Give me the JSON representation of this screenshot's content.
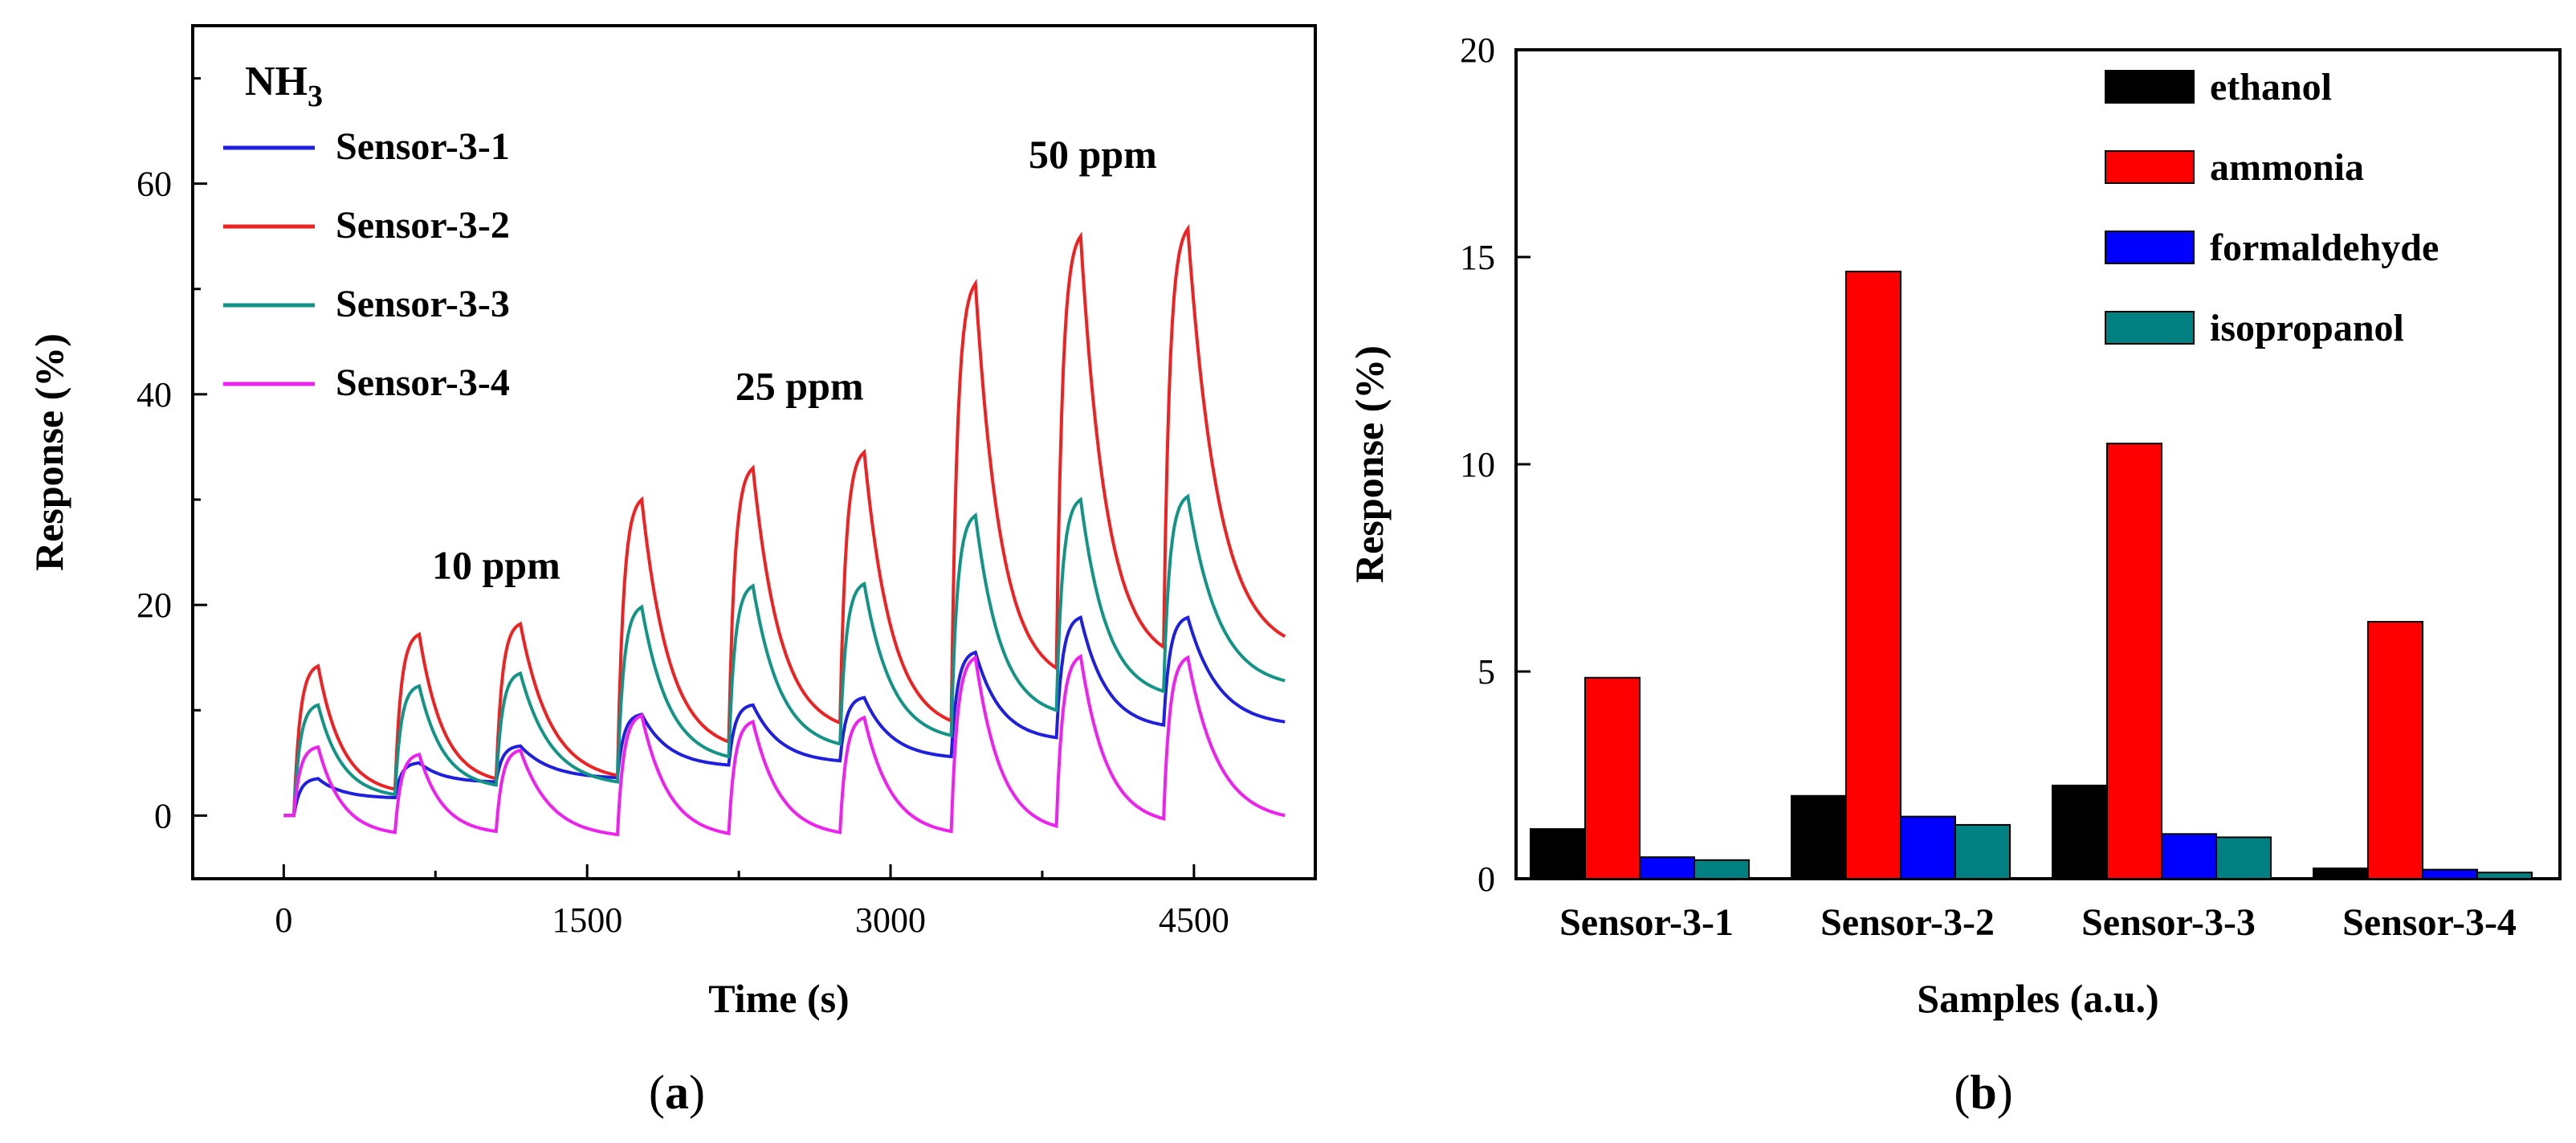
{
  "chart_data": [
    {
      "type": "line",
      "panel": "(a)",
      "caption_letter": "a",
      "title": "NH3",
      "gas": "NH",
      "gas_sub": "3",
      "xlabel": "Time (s)",
      "ylabel": "Response (%)",
      "xlim": [
        -450,
        5100
      ],
      "ylim": [
        -6,
        75
      ],
      "xticks": [
        0,
        1500,
        3000,
        4500
      ],
      "yticks": [
        0,
        20,
        40,
        60
      ],
      "grid": false,
      "legend_position": "top-left",
      "annotations": [
        {
          "text": "10 ppm",
          "x": 1050,
          "y": 22.5
        },
        {
          "text": "25 ppm",
          "x": 2550,
          "y": 39.5
        },
        {
          "text": "50 ppm",
          "x": 4000,
          "y": 61.5
        }
      ],
      "cycle_on_times": [
        50,
        550,
        1050,
        1650,
        2200,
        2750,
        3300,
        3820,
        4350
      ],
      "cycle_period_s": 500,
      "rise_s": 120,
      "series": [
        {
          "name": "Sensor-3-1",
          "color": "#1f1fdf",
          "start": 0,
          "peaks": [
            3.5,
            5.0,
            6.6,
            9.6,
            10.5,
            11.2,
            15.5,
            18.8,
            18.8
          ],
          "valleys": [
            1.7,
            3.2,
            3.6,
            4.8,
            5.2,
            5.6,
            7.4,
            8.6,
            8.9
          ]
        },
        {
          "name": "Sensor-3-2",
          "color": "#ee2222",
          "start": 0,
          "peaks": [
            14.2,
            17.2,
            18.2,
            30.0,
            33.0,
            34.5,
            50.5,
            55.0,
            55.7
          ],
          "valleys": [
            2.5,
            3.5,
            3.8,
            7.0,
            8.8,
            9.0,
            14.0,
            16.0,
            17.0
          ]
        },
        {
          "name": "Sensor-3-3",
          "color": "#139486",
          "start": 0,
          "peaks": [
            10.5,
            12.3,
            13.5,
            19.8,
            21.8,
            22.0,
            28.5,
            30.0,
            30.3
          ],
          "valleys": [
            2.0,
            2.9,
            3.2,
            5.6,
            6.8,
            7.6,
            10.0,
            11.8,
            12.8
          ]
        },
        {
          "name": "Sensor-3-4",
          "color": "#ee22ee",
          "start": 0,
          "peaks": [
            6.5,
            5.8,
            6.2,
            9.5,
            8.9,
            9.3,
            15.0,
            15.1,
            15.0
          ],
          "valleys": [
            -1.6,
            -1.5,
            -1.8,
            -1.7,
            -1.6,
            -1.5,
            -1.0,
            -0.3,
            0
          ]
        }
      ]
    },
    {
      "type": "bar",
      "panel": "(b)",
      "caption_letter": "b",
      "title": "",
      "xlabel": "Samples (a.u.)",
      "ylabel": "Response (%)",
      "ylim": [
        0,
        20
      ],
      "yticks": [
        0,
        5,
        10,
        15,
        20
      ],
      "grid": false,
      "legend_position": "top-right",
      "categories": [
        "Sensor-3-1",
        "Sensor-3-2",
        "Sensor-3-3",
        "Sensor-3-4"
      ],
      "series": [
        {
          "name": "ethanol",
          "color": "#000000",
          "values": [
            1.2,
            2.0,
            2.25,
            0.25
          ]
        },
        {
          "name": "ammonia",
          "color": "#ff0000",
          "values": [
            4.85,
            14.65,
            10.5,
            6.2
          ]
        },
        {
          "name": "formaldehyde",
          "color": "#0000ff",
          "values": [
            0.52,
            1.5,
            1.08,
            0.22
          ]
        },
        {
          "name": "isopropanol",
          "color": "#008080",
          "values": [
            0.45,
            1.3,
            1.0,
            0.15
          ]
        }
      ]
    }
  ]
}
